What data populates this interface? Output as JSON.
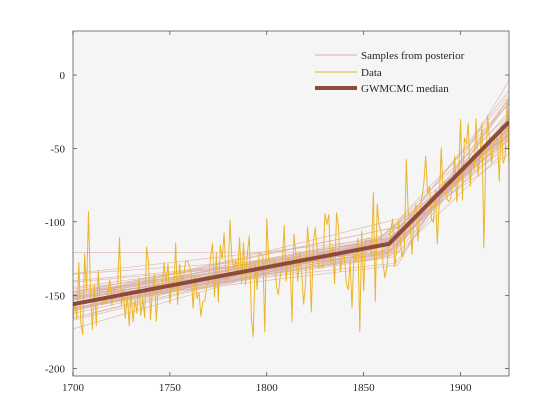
{
  "chart_data": {
    "type": "line",
    "title": "",
    "xlabel": "",
    "ylabel": "",
    "xlim": [
      1700,
      1925
    ],
    "ylim": [
      -205,
      30
    ],
    "xticks": [
      1700,
      1750,
      1800,
      1850,
      1900
    ],
    "yticks": [
      0,
      -50,
      -100,
      -150,
      -200
    ],
    "grid": false,
    "legend_position": "top-right",
    "colors": {
      "background": "#f5f5f5",
      "samples": "#d9b1aa",
      "data": "#ebb52a",
      "median": "#8e4a3f",
      "axis": "#262626"
    },
    "series": [
      {
        "name": "Samples from posterior",
        "kind": "piecewise-linear-samples",
        "count": 50,
        "x": [
          1700,
          1863,
          1925
        ],
        "y_center": [
          -156,
          -115,
          -33
        ],
        "y_spread": [
          9,
          7,
          10
        ]
      },
      {
        "name": "Data",
        "kind": "noisy-observations",
        "x_range": [
          1700,
          1925
        ],
        "step": 1,
        "noise_sd": 16
      },
      {
        "name": "GWMCMC median",
        "x": [
          1700,
          1863,
          1925
        ],
        "y": [
          -156,
          -115,
          -32
        ]
      }
    ]
  }
}
